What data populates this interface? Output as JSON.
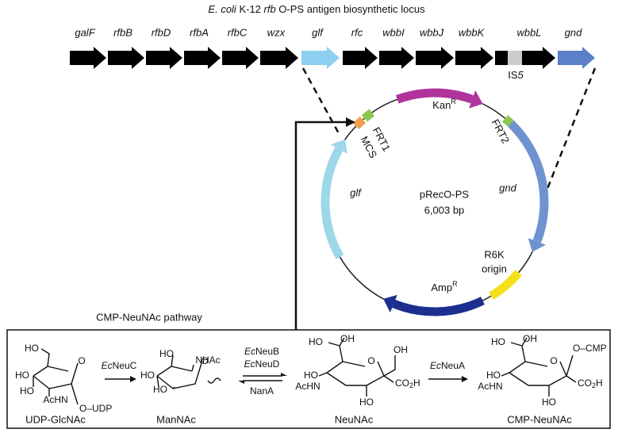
{
  "locus": {
    "title": [
      "E. coli",
      " K-12 ",
      "rfb",
      " O-PS antigen biosynthetic locus"
    ],
    "genes": [
      "galF",
      "rfbB",
      "rfbD",
      "rfbA",
      "rfbC",
      "wzx",
      "glf",
      "rfc",
      "wbbI",
      "wbbJ",
      "wbbK",
      "wbbL",
      "gnd"
    ],
    "insertion": [
      "IS",
      "5"
    ]
  },
  "plasmid": {
    "name": "pRecO-PS",
    "size": "6,003 bp",
    "kan": [
      "Kan",
      "R"
    ],
    "amp": [
      "Amp",
      "R"
    ],
    "frt1": "FRT1",
    "mcs": "MCS",
    "frt2": "FRT2",
    "glf": "glf",
    "gnd": "gnd",
    "origin": [
      "R6K",
      "origin"
    ]
  },
  "pathway": {
    "title": "CMP-NeuNAc pathway",
    "compounds": [
      {
        "name": "UDP-GlcNAc",
        "labels": [
          "HO",
          "HO",
          "HO",
          "AcHN",
          "O",
          "O–UDP"
        ]
      },
      {
        "name": "ManNAc",
        "labels": [
          "HO",
          "NHAc",
          "HO",
          "HO",
          "O"
        ]
      },
      {
        "name": "NeuNAc",
        "labels": [
          "HO",
          "OH",
          "OH",
          "HO",
          "AcHN",
          "O",
          "HO"
        ],
        "acid": [
          "CO",
          "2",
          "H"
        ]
      },
      {
        "name": "CMP-NeuNAc",
        "labels": [
          "HO",
          "OH",
          "O–CMP",
          "HO",
          "AcHN",
          "O",
          "HO"
        ],
        "acid": [
          "CO",
          "2",
          "H"
        ]
      }
    ],
    "enzymes": [
      [
        "Ec",
        "NeuC"
      ],
      [
        "Ec",
        "NeuB"
      ],
      [
        "Ec",
        "NeuD"
      ],
      "NanA",
      [
        "Ec",
        "NeuA"
      ]
    ]
  }
}
